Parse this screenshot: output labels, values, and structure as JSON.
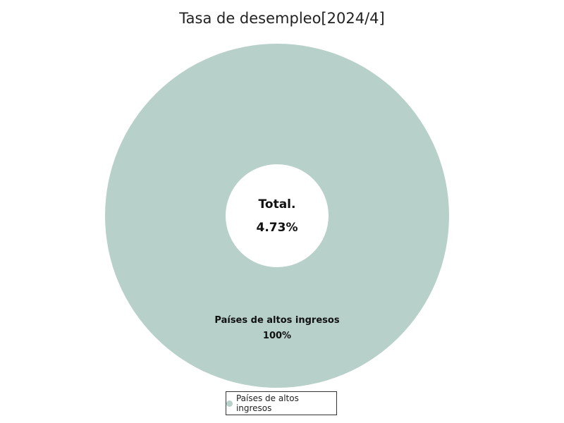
{
  "chart_data": {
    "type": "pie",
    "variant": "donut",
    "title": "Tasa de desempleo[2024/4]",
    "center_title": "Total.",
    "center_value": "4.73%",
    "slices": [
      {
        "label": "Países de altos ingresos",
        "percent": 100,
        "percent_label": "100%",
        "color": "#b8d0ca"
      }
    ],
    "legend": {
      "position": "bottom",
      "entries": [
        "Países de altos ingresos"
      ]
    }
  }
}
